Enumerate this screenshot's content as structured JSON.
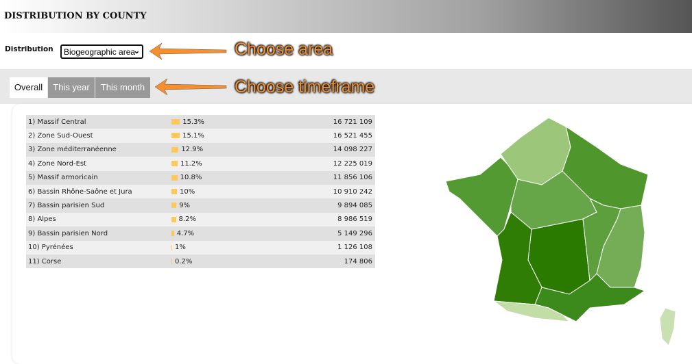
{
  "header": {
    "title": "DISTRIBUTION BY COUNTY"
  },
  "filter": {
    "label": "Distribution",
    "selected": "Biogeographic area"
  },
  "tabs": [
    {
      "label": "Overall",
      "active": true
    },
    {
      "label": "This year"
    },
    {
      "label": "This month"
    }
  ],
  "annotations": {
    "area": "Choose area",
    "timeframe": "Choose timeframe"
  },
  "colors": {
    "bar": "#ffc85a",
    "annotation": "#f6902e"
  },
  "rows": [
    {
      "name": "1) Massif Central",
      "pct": "15.3%",
      "value": 15.3,
      "count": "16 721 109",
      "color": "#2b7a00"
    },
    {
      "name": "2) Zone Sud-Ouest",
      "pct": "15.1%",
      "value": 15.1,
      "count": "16 521 455",
      "color": "#2f7d05"
    },
    {
      "name": "3) Zone méditerranéenne",
      "pct": "12.9%",
      "value": 12.9,
      "count": "14 098 227",
      "color": "#3d8a1c"
    },
    {
      "name": "4) Zone Nord-Est",
      "pct": "11.2%",
      "value": 11.2,
      "count": "12 225 019",
      "color": "#4f962c"
    },
    {
      "name": "5) Massif armoricain",
      "pct": "10.8%",
      "value": 10.8,
      "count": "11 856 106",
      "color": "#549a33"
    },
    {
      "name": "6) Bassin Rhône-Saône et Jura",
      "pct": "10%",
      "value": 10,
      "count": "10 910 242",
      "color": "#5c9f3c"
    },
    {
      "name": "7) Bassin parisien Sud",
      "pct": "9%",
      "value": 9,
      "count": "9 894 085",
      "color": "#66a548"
    },
    {
      "name": "8) Alpes",
      "pct": "8.2%",
      "value": 8.2,
      "count": "8 986 519",
      "color": "#74ad56"
    },
    {
      "name": "9) Bassin parisien Nord",
      "pct": "4.7%",
      "value": 4.7,
      "count": "5 149 296",
      "color": "#9cc67a"
    },
    {
      "name": "10) Pyrénées",
      "pct": "1%",
      "value": 1,
      "count": "1 126 108",
      "color": "#c3dda6"
    },
    {
      "name": "11) Corse",
      "pct": "0.2%",
      "value": 0.2,
      "count": "174 806",
      "color": "#c8e0b2"
    }
  ]
}
